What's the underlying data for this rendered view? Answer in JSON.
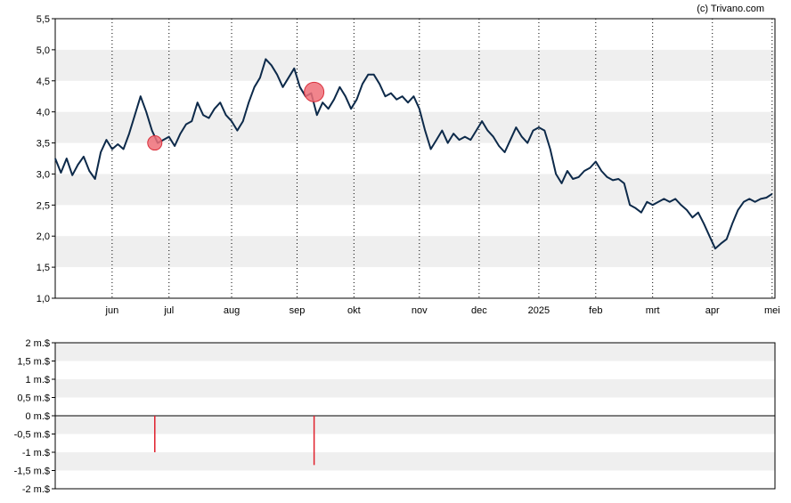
{
  "credit": "(c) Trivano.com",
  "colors": {
    "line": "#0d2a4a",
    "band": "#efefef",
    "marker_fill": "#ef6f78",
    "marker_stroke": "#d9303c",
    "bar": "#e0202c"
  },
  "chart_data": [
    {
      "type": "line",
      "title": "",
      "ylim": [
        1.0,
        5.5
      ],
      "yticks": [
        "1,0",
        "1,5",
        "2,0",
        "2,5",
        "3,0",
        "3,5",
        "4,0",
        "4,5",
        "5,0",
        "5,5"
      ],
      "ytick_values": [
        1.0,
        1.5,
        2.0,
        2.5,
        3.0,
        3.5,
        4.0,
        4.5,
        5.0,
        5.5
      ],
      "bands": [
        [
          1.5,
          2.0
        ],
        [
          2.5,
          3.0
        ],
        [
          3.5,
          4.0
        ],
        [
          4.5,
          5.0
        ]
      ],
      "grid": "vertical dotted at month ticks",
      "xlim": [
        0,
        253
      ],
      "xticks": [
        {
          "label": "jun",
          "x": 20
        },
        {
          "label": "jul",
          "x": 40
        },
        {
          "label": "aug",
          "x": 62
        },
        {
          "label": "sep",
          "x": 85
        },
        {
          "label": "okt",
          "x": 105
        },
        {
          "label": "nov",
          "x": 128
        },
        {
          "label": "dec",
          "x": 149
        },
        {
          "label": "2025",
          "x": 170
        },
        {
          "label": "feb",
          "x": 190
        },
        {
          "label": "mrt",
          "x": 210
        },
        {
          "label": "apr",
          "x": 231
        },
        {
          "label": "mei",
          "x": 252
        }
      ],
      "series": [
        {
          "x": [
            0,
            2,
            4,
            6,
            8,
            10,
            12,
            14,
            16,
            18,
            20,
            22,
            24,
            26,
            28,
            30,
            32,
            34,
            36,
            38,
            40,
            42,
            44,
            46,
            48,
            50,
            52,
            54,
            56,
            58,
            60,
            62,
            64,
            66,
            68,
            70,
            72,
            74,
            76,
            78,
            80,
            82,
            84,
            86,
            88,
            90,
            92,
            94,
            96,
            98,
            100,
            102,
            104,
            106,
            108,
            110,
            112,
            114,
            116,
            118,
            120,
            122,
            124,
            126,
            128,
            130,
            132,
            134,
            136,
            138,
            140,
            142,
            144,
            146,
            148,
            150,
            152,
            154,
            156,
            158,
            160,
            162,
            164,
            166,
            168,
            170,
            172,
            174,
            176,
            178,
            180,
            182,
            184,
            186,
            188,
            190,
            192,
            194,
            196,
            198,
            200,
            202,
            204,
            206,
            208,
            210,
            212,
            214,
            216,
            218,
            220,
            222,
            224,
            226,
            228,
            230,
            232,
            234,
            236,
            238,
            240,
            242,
            244,
            246,
            248,
            250,
            252
          ],
          "y": [
            3.25,
            3.02,
            3.25,
            2.98,
            3.15,
            3.28,
            3.05,
            2.92,
            3.35,
            3.55,
            3.4,
            3.48,
            3.4,
            3.65,
            3.95,
            4.25,
            4.0,
            3.7,
            3.5,
            3.55,
            3.6,
            3.45,
            3.65,
            3.8,
            3.85,
            4.15,
            3.95,
            3.9,
            4.05,
            4.15,
            3.95,
            3.85,
            3.7,
            3.85,
            4.15,
            4.4,
            4.55,
            4.85,
            4.75,
            4.6,
            4.4,
            4.55,
            4.7,
            4.4,
            4.25,
            4.3,
            3.95,
            4.15,
            4.05,
            4.2,
            4.4,
            4.25,
            4.05,
            4.2,
            4.45,
            4.6,
            4.6,
            4.45,
            4.25,
            4.3,
            4.2,
            4.25,
            4.15,
            4.25,
            4.05,
            3.7,
            3.4,
            3.55,
            3.7,
            3.5,
            3.65,
            3.55,
            3.6,
            3.55,
            3.7,
            3.85,
            3.7,
            3.6,
            3.45,
            3.35,
            3.55,
            3.75,
            3.6,
            3.5,
            3.7,
            3.75,
            3.7,
            3.4,
            3.0,
            2.85,
            3.05,
            2.92,
            2.95,
            3.05,
            3.1,
            3.2,
            3.05,
            2.95,
            2.9,
            2.92,
            2.85,
            2.5,
            2.45,
            2.38,
            2.55,
            2.5,
            2.55,
            2.6,
            2.55,
            2.6,
            2.5,
            2.42,
            2.3,
            2.38,
            2.2,
            2.0,
            1.8,
            1.88,
            1.95,
            2.2,
            2.42,
            2.55,
            2.6,
            2.55,
            2.6,
            2.62,
            2.68
          ]
        }
      ],
      "markers": [
        {
          "x": 35,
          "y": 3.5,
          "size": "small"
        },
        {
          "x": 91,
          "y": 4.32,
          "size": "large"
        }
      ]
    },
    {
      "type": "bar",
      "title": "",
      "ylim": [
        -2,
        2
      ],
      "yticks": [
        "2 m.$",
        "1,5 m.$",
        "1 m.$",
        "0,5 m.$",
        "0 m.$",
        "-0,5 m.$",
        "-1 m.$",
        "-1,5 m.$",
        "-2 m.$"
      ],
      "ytick_values": [
        2,
        1.5,
        1,
        0.5,
        0,
        -0.5,
        -1,
        -1.5,
        -2
      ],
      "bands": [
        [
          1.5,
          2.0
        ],
        [
          0.5,
          1.0
        ],
        [
          -0.5,
          0.0
        ],
        [
          -1.5,
          -1.0
        ]
      ],
      "xlim": [
        0,
        253
      ],
      "bars": [
        {
          "x": 35,
          "value": -1.0
        },
        {
          "x": 91,
          "value": -1.35
        }
      ]
    }
  ]
}
